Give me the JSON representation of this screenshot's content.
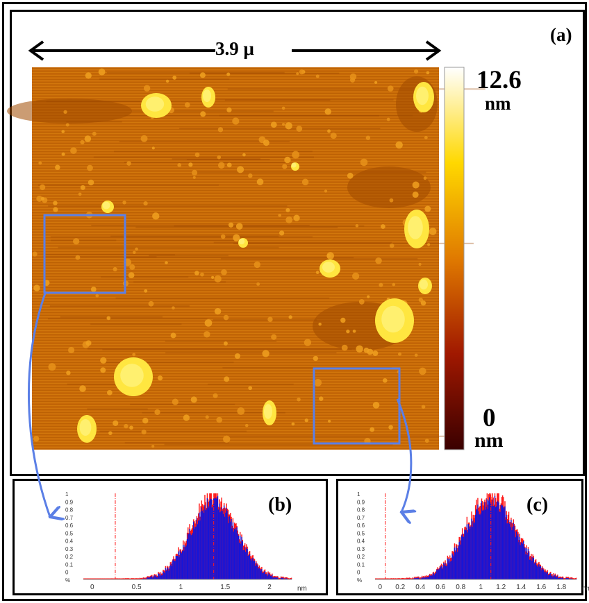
{
  "figure": {
    "panel_a_label": "(a)",
    "panel_b_label": "(b)",
    "panel_c_label": "(c)",
    "scale_bar_label": "3.9 μ",
    "colorbar": {
      "max": "12.6",
      "max_unit": "nm",
      "min": "0",
      "min_unit": "nm"
    },
    "colors": {
      "afm_base": "#c86a08",
      "afm_high": "#ffe640",
      "roi_box": "#5b7fe6",
      "hist_fill": "#1515d8",
      "hist_outline": "#ff1a1a"
    }
  },
  "chart_data": [
    {
      "type": "bar",
      "panel": "(b)",
      "xlabel": "nm",
      "xticks": [
        "0",
        "0.5",
        "1",
        "1.5",
        "2"
      ],
      "xlim": [
        -0.1,
        2.25
      ],
      "yticks": [
        "1",
        "0.9",
        "0.8",
        "0.7",
        "0.6",
        "0.5",
        "0.4",
        "0.3",
        "0.2",
        "0.1",
        "0",
        "%"
      ],
      "ylim": [
        0,
        1
      ],
      "peak_x": 1.37,
      "spread": 0.26,
      "marker_x": [
        0.26,
        1.37
      ]
    },
    {
      "type": "bar",
      "panel": "(c)",
      "xlabel": "nm",
      "xticks": [
        "0",
        "0.2",
        "0.4",
        "0.6",
        "0.8",
        "1",
        "1.2",
        "1.4",
        "1.6",
        "1.8"
      ],
      "xlim": [
        -0.05,
        1.95
      ],
      "yticks": [
        "1",
        "0.9",
        "0.8",
        "0.7",
        "0.6",
        "0.5",
        "0.4",
        "0.3",
        "0.2",
        "0.1",
        "0",
        "%"
      ],
      "ylim": [
        0,
        1
      ],
      "peak_x": 1.1,
      "spread": 0.25,
      "marker_x": [
        0.05,
        1.1
      ]
    }
  ]
}
